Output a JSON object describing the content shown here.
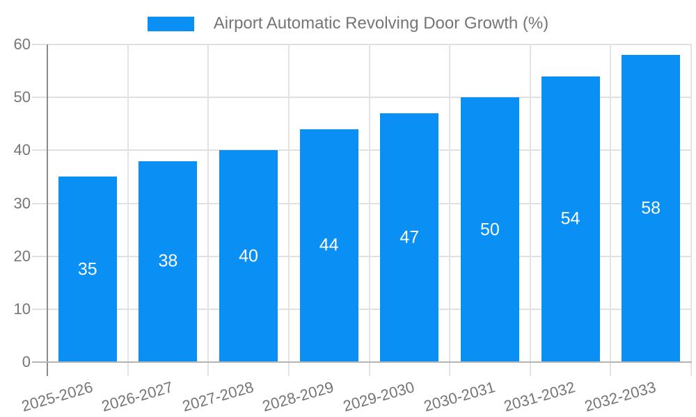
{
  "legend": {
    "label": "Airport Automatic Revolving Door Growth (%)"
  },
  "chart_data": {
    "type": "bar",
    "title": "Airport Automatic Revolving Door Growth (%)",
    "categories": [
      "2025-2026",
      "2026-2027",
      "2027-2028",
      "2028-2029",
      "2029-2030",
      "2030-2031",
      "2031-2032",
      "2032-2033"
    ],
    "values": [
      35,
      38,
      40,
      44,
      47,
      50,
      54,
      58
    ],
    "series": [
      {
        "name": "Airport Automatic Revolving Door Growth (%)",
        "values": [
          35,
          38,
          40,
          44,
          47,
          50,
          54,
          58
        ]
      }
    ],
    "xlabel": "",
    "ylabel": "",
    "ylim": [
      0,
      60
    ],
    "yticks": [
      0,
      10,
      20,
      30,
      40,
      50,
      60
    ],
    "grid": true,
    "legend_position": "top",
    "value_labels_position": "inside-middle",
    "x_tick_rotation_deg": 16
  },
  "colors": {
    "bar": "#0a90f5",
    "value_label": "#ffffff",
    "axis_text": "#757575",
    "legend_text": "#757575",
    "gridline_horizontal": "#e0e0e0",
    "gridline_vertical": "#e3e3e3",
    "x_axis_line": "#b3b3b3",
    "y_axis_line": "#8a8a8a",
    "background": "#ffffff"
  }
}
